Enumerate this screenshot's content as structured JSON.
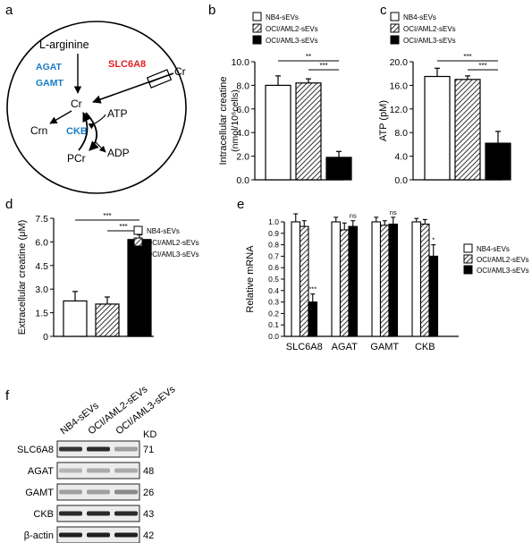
{
  "panels": {
    "a": "a",
    "b": "b",
    "c": "c",
    "d": "d",
    "e": "e",
    "f": "f"
  },
  "colors": {
    "nb4": "#ffffff",
    "ocil2": "hatch",
    "ocil3": "#000000",
    "red_label": "#e31e24",
    "blue_label": "#1a7cc4"
  },
  "legend": [
    "NB4-sEVs",
    "OCI/AML2-sEVs",
    "OCI/AML3-sEVs"
  ],
  "diagram": {
    "larginine": "L-arginine",
    "agat": "AGAT",
    "gamt": "GAMT",
    "slc6a8": "SLC6A8",
    "cr_out": "Cr",
    "cr": "Cr",
    "crn": "Crn",
    "ckb": "CKB",
    "atp": "ATP",
    "adp": "ADP",
    "pcr": "PCr"
  },
  "chart_data": [
    {
      "panel": "b",
      "type": "bar",
      "categories": [
        "NB4-sEVs",
        "OCI/AML2-sEVs",
        "OCI/AML3-sEVs"
      ],
      "values": [
        8.0,
        8.2,
        1.9
      ],
      "errors": [
        0.8,
        0.35,
        0.5
      ],
      "ylabel": "Intracellular creatine",
      "ylabel2": "(nmol/10⁶cells)",
      "ylim": [
        0,
        10
      ],
      "yticks": [
        "0.0",
        "2.0",
        "4.0",
        "6.0",
        "8.0",
        "10.0"
      ],
      "significance": [
        "**",
        "***"
      ]
    },
    {
      "panel": "c",
      "type": "bar",
      "categories": [
        "NB4-sEVs",
        "OCI/AML2-sEVs",
        "OCI/AML3-sEVs"
      ],
      "values": [
        17.5,
        17.0,
        6.2
      ],
      "errors": [
        1.4,
        0.6,
        2.0
      ],
      "ylabel": "ATP (pM)",
      "ylim": [
        0,
        20
      ],
      "yticks": [
        "0.0",
        "4.0",
        "8.0",
        "12.0",
        "16.0",
        "20.0"
      ],
      "significance": [
        "***",
        "***"
      ]
    },
    {
      "panel": "d",
      "type": "bar",
      "categories": [
        "NB4-sEVs",
        "OCI/AML2-sEVs",
        "OCI/AML3-sEVs"
      ],
      "values": [
        2.25,
        2.05,
        6.15
      ],
      "errors": [
        0.6,
        0.45,
        0.3
      ],
      "ylabel": "Extracellular creatine (μM)",
      "ylim": [
        0,
        7.5
      ],
      "yticks": [
        "0",
        "1.5",
        "3.0",
        "4.5",
        "6.0",
        "7.5"
      ],
      "significance": [
        "***",
        "***"
      ]
    },
    {
      "panel": "e",
      "type": "bar",
      "categories": [
        "SLC6A8",
        "AGAT",
        "GAMT",
        "CKB"
      ],
      "series": [
        {
          "name": "NB4-sEVs",
          "values": [
            1.0,
            1.0,
            1.0,
            1.0
          ],
          "errors": [
            0.07,
            0.04,
            0.04,
            0.03
          ]
        },
        {
          "name": "OCI/AML2-sEVs",
          "values": [
            0.96,
            0.93,
            0.97,
            0.98
          ],
          "errors": [
            0.05,
            0.06,
            0.04,
            0.04
          ]
        },
        {
          "name": "OCI/AML3-sEVs",
          "values": [
            0.3,
            0.96,
            0.98,
            0.7
          ],
          "errors": [
            0.07,
            0.05,
            0.06,
            0.1
          ]
        }
      ],
      "annotations": [
        "***",
        "ns",
        "ns",
        "*"
      ],
      "ylabel": "Relative mRNA",
      "ylim": [
        0,
        1
      ],
      "yticks": [
        "0.0",
        "0.1",
        "0.2",
        "0.3",
        "0.4",
        "0.5",
        "0.6",
        "0.7",
        "0.8",
        "0.9",
        "1.0"
      ]
    }
  ],
  "blot": {
    "lanes": [
      "NB4-sEVs",
      "OCI/AML2-sEVs",
      "OCI/AML3-sEVs"
    ],
    "kd_label": "KD",
    "rows": [
      {
        "protein": "SLC6A8",
        "kd": "71",
        "intensity": [
          0.85,
          0.9,
          0.35
        ]
      },
      {
        "protein": "AGAT",
        "kd": "48",
        "intensity": [
          0.25,
          0.3,
          0.3
        ]
      },
      {
        "protein": "GAMT",
        "kd": "26",
        "intensity": [
          0.35,
          0.35,
          0.45
        ]
      },
      {
        "protein": "CKB",
        "kd": "43",
        "intensity": [
          0.9,
          0.9,
          0.9
        ]
      },
      {
        "protein": "β-actin",
        "kd": "42",
        "intensity": [
          0.95,
          0.95,
          0.95
        ]
      }
    ]
  }
}
